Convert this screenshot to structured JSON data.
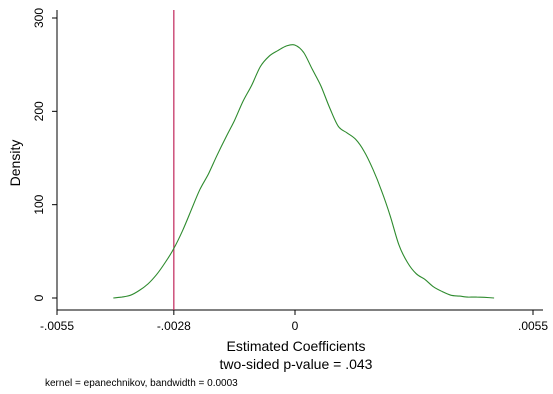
{
  "chart_data": {
    "type": "line",
    "xlabel": "Estimated Coefficients",
    "subtitle": "two-sided p-value = .043",
    "ylabel": "Density",
    "note": "kernel = epanechnikov, bandwidth = 0.0003",
    "xlim": [
      -0.0055,
      0.0055
    ],
    "ylim": [
      0,
      300
    ],
    "x_ticks": [
      {
        "value": -0.0055,
        "label": "-.0055"
      },
      {
        "value": -0.0028,
        "label": "-.0028"
      },
      {
        "value": 0,
        "label": "0"
      },
      {
        "value": 0.0055,
        "label": ".0055"
      }
    ],
    "y_ticks": [
      {
        "value": 0,
        "label": "0"
      },
      {
        "value": 100,
        "label": "100"
      },
      {
        "value": 200,
        "label": "200"
      },
      {
        "value": 300,
        "label": "300"
      }
    ],
    "reference_line": {
      "x": -0.0028,
      "color": "#c0245a"
    },
    "series": [
      {
        "color": "#2e8b2e",
        "x": [
          -0.0042,
          -0.004,
          -0.0038,
          -0.0036,
          -0.0034,
          -0.0032,
          -0.003,
          -0.0028,
          -0.0026,
          -0.0024,
          -0.0022,
          -0.002,
          -0.0018,
          -0.0016,
          -0.0014,
          -0.0012,
          -0.001,
          -0.0008,
          -0.0006,
          -0.0004,
          -0.0002,
          0.0,
          0.0002,
          0.0004,
          0.0006,
          0.0008,
          0.001,
          0.0012,
          0.0014,
          0.0016,
          0.0018,
          0.002,
          0.0022,
          0.0024,
          0.0026,
          0.0028,
          0.003,
          0.0032,
          0.0034,
          0.0036,
          0.0038,
          0.004,
          0.0042,
          0.0046
        ],
        "y": [
          0,
          1,
          3,
          8,
          15,
          25,
          38,
          53,
          72,
          94,
          116,
          133,
          153,
          172,
          190,
          211,
          228,
          248,
          259,
          265,
          270,
          271,
          263,
          245,
          227,
          204,
          184,
          177,
          170,
          157,
          138,
          115,
          88,
          57,
          38,
          26,
          20,
          12,
          7,
          3,
          2,
          1,
          1,
          0
        ]
      }
    ]
  }
}
